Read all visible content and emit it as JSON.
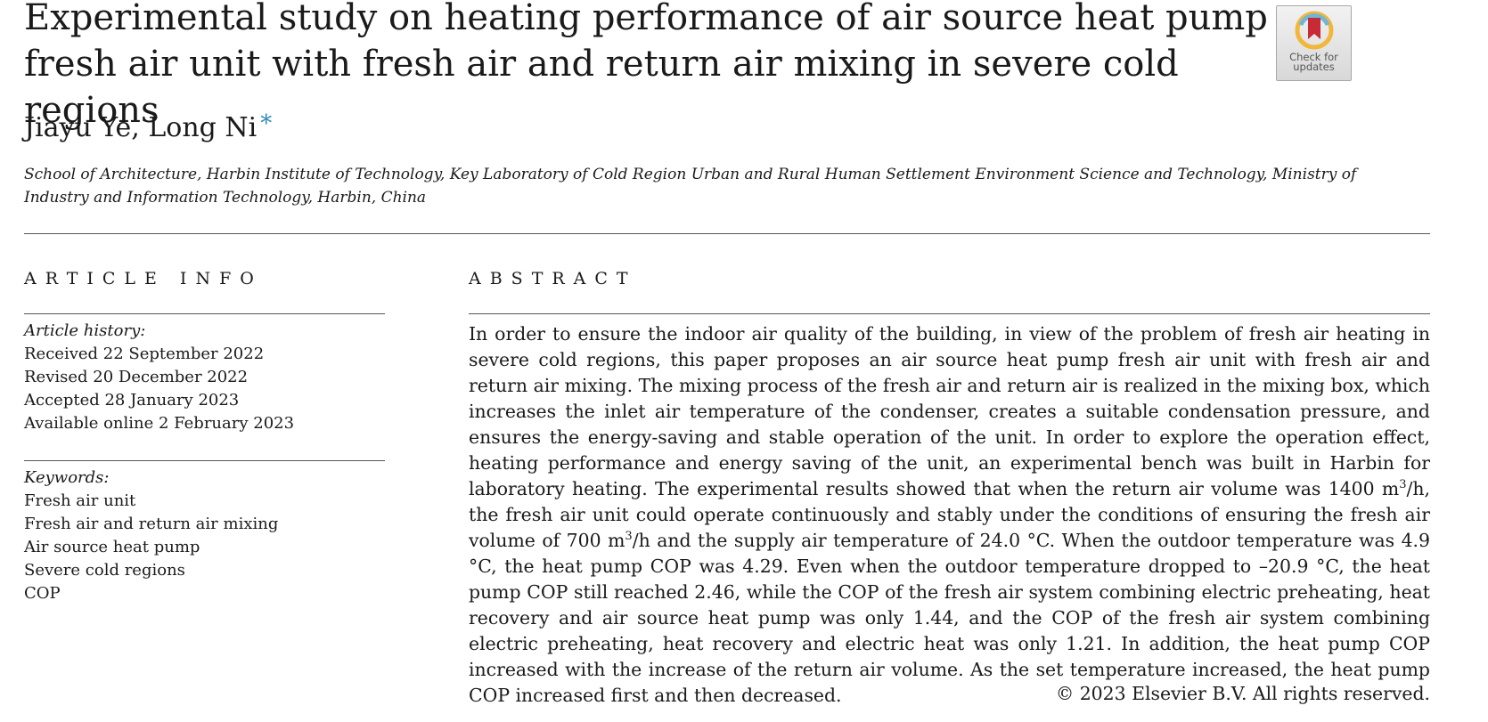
{
  "article": {
    "title_line1": "Experimental study on heating performance of air source heat pump",
    "title_line2": "fresh air unit with fresh air and return air mixing in severe cold regions",
    "authors": "Jiayu Ye, Long Ni",
    "corresponding_mark": "*",
    "affiliation": "School of Architecture, Harbin Institute of Technology, Key Laboratory of Cold Region Urban and Rural Human Settlement Environment Science and Technology, Ministry of Industry and Information Technology, Harbin, China"
  },
  "badge": {
    "label": "Check for updates",
    "icon": "bookmark-icon"
  },
  "article_info": {
    "heading": "ARTICLE INFO",
    "history_label": "Article history:",
    "history": [
      "Received 22 September 2022",
      "Revised 20 December 2022",
      "Accepted 28 January 2023",
      "Available online 2 February 2023"
    ],
    "keywords_label": "Keywords:",
    "keywords": [
      "Fresh air unit",
      "Fresh air and return air mixing",
      "Air source heat pump",
      "Severe cold regions",
      "COP"
    ]
  },
  "abstract": {
    "heading": "ABSTRACT",
    "part1": "In order to ensure the indoor air quality of the building, in view of the problem of fresh air heating in severe cold regions, this paper proposes an air source heat pump fresh air unit with fresh air and return air mixing. The mixing process of the fresh air and return air is realized in the mixing box, which increases the inlet air temperature of the condenser, creates a suitable condensation pressure, and ensures the energy-saving and stable operation of the unit. In order to explore the operation effect, heating performance and energy saving of the unit, an experimental bench was built in Harbin for laboratory heating. The experimental results showed that when the return air volume was 1400 m",
    "sup1": "3",
    "part2": "/h, the fresh air unit could operate continuously and stably under the conditions of ensuring the fresh air volume of 700 m",
    "sup2": "3",
    "part3": "/h and the supply air temperature of 24.0 °C. When the outdoor temperature was 4.9 °C, the heat pump COP was 4.29. Even when the outdoor temperature dropped to –20.9 °C, the heat pump COP still reached 2.46, while the COP of the fresh air system combining electric preheating, heat recovery and air source heat pump was only 1.44, and the COP of the fresh air system combining electric preheating, heat recovery and electric heat was only 1.21. In addition, the heat pump COP increased with the increase of the return air volume. As the set temperature increased, the heat pump COP increased first and then decreased.",
    "copyright": "© 2023 Elsevier B.V. All rights reserved."
  }
}
